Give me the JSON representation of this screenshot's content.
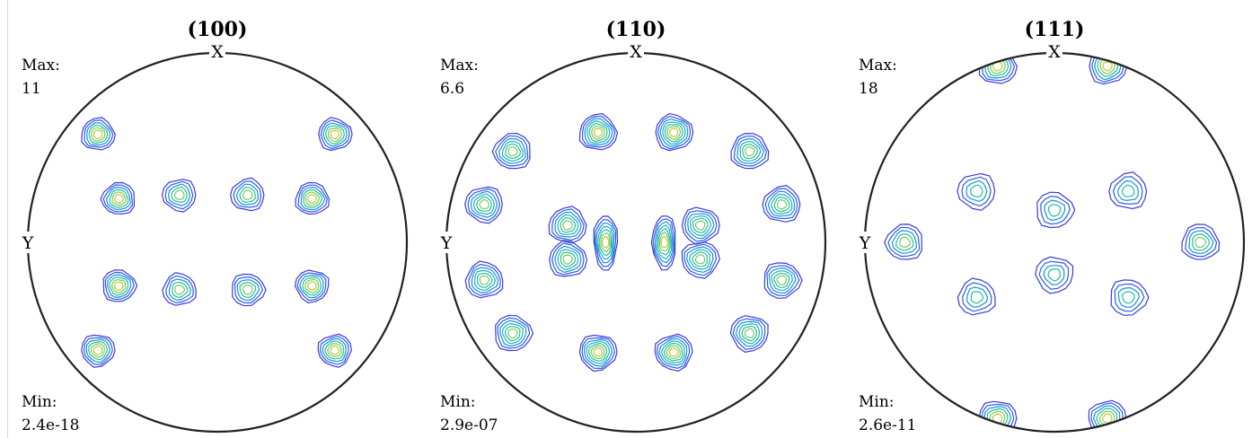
{
  "chart_data": [
    {
      "type": "contour",
      "title": "(100)",
      "axis_labels": {
        "top": "X",
        "left": "Y"
      },
      "max_label": "Max:",
      "max_value": "11",
      "min_label": "Min:",
      "min_value": "2.4e-18",
      "levels": 6,
      "peaks": [
        {
          "x": -0.63,
          "y": 0.57,
          "value": 11
        },
        {
          "x": 0.62,
          "y": 0.57,
          "value": 11
        },
        {
          "x": -0.63,
          "y": -0.57,
          "value": 11
        },
        {
          "x": 0.62,
          "y": -0.57,
          "value": 11
        },
        {
          "x": -0.52,
          "y": 0.23,
          "value": 9
        },
        {
          "x": 0.5,
          "y": 0.23,
          "value": 9
        },
        {
          "x": -0.52,
          "y": -0.23,
          "value": 9
        },
        {
          "x": 0.5,
          "y": -0.23,
          "value": 9
        },
        {
          "x": -0.2,
          "y": 0.25,
          "value": 8
        },
        {
          "x": 0.16,
          "y": 0.25,
          "value": 8
        },
        {
          "x": -0.2,
          "y": -0.25,
          "value": 8
        },
        {
          "x": 0.16,
          "y": -0.25,
          "value": 8
        }
      ]
    },
    {
      "type": "contour",
      "title": "(110)",
      "axis_labels": {
        "top": "X",
        "left": "Y"
      },
      "max_label": "Max:",
      "max_value": "6.6",
      "min_label": "Min:",
      "min_value": "2.9e-07",
      "levels": 7,
      "peaks": [
        {
          "x": -0.2,
          "y": 0.58,
          "value": 6.6
        },
        {
          "x": 0.2,
          "y": 0.58,
          "value": 6.6
        },
        {
          "x": -0.2,
          "y": -0.58,
          "value": 6.6
        },
        {
          "x": 0.2,
          "y": -0.58,
          "value": 6.6
        },
        {
          "x": -0.65,
          "y": 0.48,
          "value": 5.5
        },
        {
          "x": 0.6,
          "y": 0.48,
          "value": 5.5
        },
        {
          "x": -0.65,
          "y": -0.48,
          "value": 5.5
        },
        {
          "x": 0.6,
          "y": -0.48,
          "value": 5.5
        },
        {
          "x": -0.8,
          "y": 0.2,
          "value": 5
        },
        {
          "x": 0.77,
          "y": 0.2,
          "value": 5
        },
        {
          "x": -0.8,
          "y": -0.2,
          "value": 5
        },
        {
          "x": 0.77,
          "y": -0.2,
          "value": 5
        },
        {
          "x": -0.16,
          "y": 0.0,
          "value": 6
        },
        {
          "x": 0.15,
          "y": 0.0,
          "value": 6
        },
        {
          "x": -0.36,
          "y": 0.09,
          "value": 4
        },
        {
          "x": -0.36,
          "y": -0.09,
          "value": 4
        },
        {
          "x": 0.34,
          "y": 0.09,
          "value": 4
        },
        {
          "x": 0.34,
          "y": -0.09,
          "value": 4
        }
      ]
    },
    {
      "type": "contour",
      "title": "(111)",
      "axis_labels": {
        "top": "X",
        "left": "Y"
      },
      "max_label": "Max:",
      "max_value": "18",
      "min_label": "Min:",
      "min_value": "2.6e-11",
      "levels": 6,
      "peaks": [
        {
          "x": -0.3,
          "y": 0.93,
          "value": 18
        },
        {
          "x": 0.28,
          "y": 0.93,
          "value": 18
        },
        {
          "x": -0.3,
          "y": -0.93,
          "value": 18
        },
        {
          "x": 0.28,
          "y": -0.93,
          "value": 18
        },
        {
          "x": -0.79,
          "y": 0.0,
          "value": 8
        },
        {
          "x": 0.77,
          "y": 0.0,
          "value": 8
        },
        {
          "x": 0.0,
          "y": 0.17,
          "value": 6
        },
        {
          "x": 0.0,
          "y": -0.17,
          "value": 6
        },
        {
          "x": -0.41,
          "y": 0.27,
          "value": 5
        },
        {
          "x": 0.39,
          "y": 0.27,
          "value": 5
        },
        {
          "x": -0.41,
          "y": -0.29,
          "value": 5
        },
        {
          "x": 0.39,
          "y": -0.29,
          "value": 5
        }
      ]
    }
  ]
}
